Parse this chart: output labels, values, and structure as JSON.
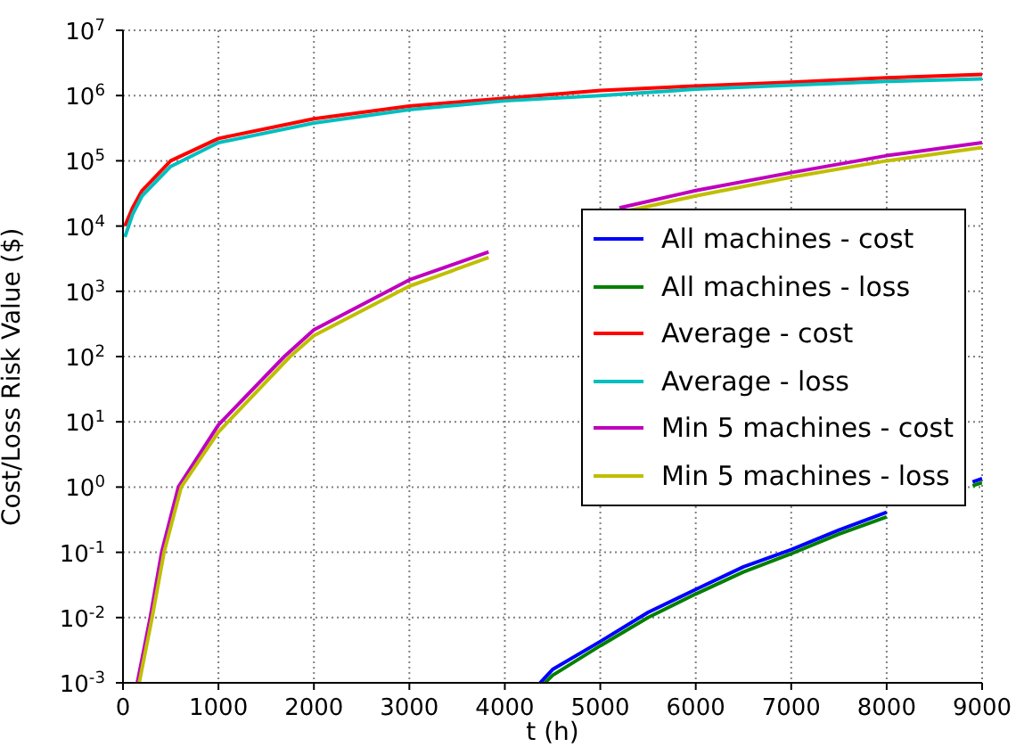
{
  "chart_data": {
    "type": "line",
    "xlabel": "t (h)",
    "ylabel": "Cost/Loss Risk Value ($)",
    "log": "y",
    "grid": true,
    "legend": "right",
    "line_style": "solid",
    "marker": "none",
    "xlim": [
      0,
      9000
    ],
    "xticks": [
      0,
      1000,
      2000,
      3000,
      4000,
      5000,
      6000,
      7000,
      8000,
      9000
    ],
    "ylim": [
      0.001,
      10000000
    ],
    "yticks": [
      {
        "value": 0.001,
        "label": "10$^{-3}$"
      },
      {
        "value": 0.01,
        "label": "10$^{-2}$"
      },
      {
        "value": 0.1,
        "label": "10$^{-1}$"
      },
      {
        "value": 1,
        "label": "10$^{0}$"
      },
      {
        "value": 10,
        "label": "10$^{1}$"
      },
      {
        "value": 100,
        "label": "10$^{2}$"
      },
      {
        "value": 1000,
        "label": "10$^{3}$"
      },
      {
        "value": 10000,
        "label": "10$^{4}$"
      },
      {
        "value": 100000,
        "label": "10$^{5}$"
      },
      {
        "value": 1000000,
        "label": "10$^{6}$"
      },
      {
        "value": 10000000,
        "label": "10$^{7}$"
      }
    ],
    "series": [
      {
        "name": "All machines - cost",
        "color": "#0000ff",
        "x": [
          4370,
          4500,
          5000,
          5500,
          6000,
          6500,
          7000,
          7500,
          8000,
          8300,
          8600,
          8900,
          9000
        ],
        "values": [
          0.001,
          0.0016,
          0.0043,
          0.012,
          0.027,
          0.06,
          0.11,
          0.22,
          0.41,
          null,
          null,
          1.2,
          1.35
        ]
      },
      {
        "name": "All machines - loss",
        "color": "#008000",
        "x": [
          4420,
          4500,
          5000,
          5500,
          6000,
          6500,
          7000,
          7500,
          8000,
          8300,
          8600,
          8900,
          9000
        ],
        "values": [
          0.001,
          0.0013,
          0.0037,
          0.01,
          0.023,
          0.05,
          0.095,
          0.19,
          0.35,
          null,
          null,
          1.05,
          1.17
        ]
      },
      {
        "name": "Average - cost",
        "color": "#ff0000",
        "x": [
          20,
          100,
          200,
          500,
          1000,
          2000,
          3000,
          4000,
          5000,
          6000,
          7000,
          8000,
          9000
        ],
        "values": [
          10000,
          19000,
          35000,
          100000,
          220000,
          440000,
          690000,
          910000,
          1200000,
          1400000,
          1600000,
          1870000,
          2100000
        ]
      },
      {
        "name": "Average - loss",
        "color": "#00bfbf",
        "x": [
          20,
          100,
          200,
          500,
          1000,
          2000,
          3000,
          4000,
          5000,
          6000,
          7000,
          8000,
          9000
        ],
        "values": [
          6800,
          15000,
          29000,
          82000,
          190000,
          380000,
          610000,
          830000,
          1000000,
          1250000,
          1450000,
          1650000,
          1800000
        ]
      },
      {
        "name": "Min 5 machines - cost",
        "color": "#bf00bf",
        "x": [
          150,
          285,
          405,
          580,
          1000,
          1690,
          2000,
          3000,
          3500,
          3830,
          4500,
          5200,
          6000,
          7000,
          8000,
          9000
        ],
        "values": [
          0.001,
          0.01,
          0.1,
          1,
          9,
          100,
          257,
          1500,
          2700,
          4000,
          null,
          19000,
          35000,
          66000,
          120000,
          190000
        ]
      },
      {
        "name": "Min 5 machines - loss",
        "color": "#bfbf00",
        "x": [
          170,
          305,
          430,
          610,
          1000,
          1750,
          2000,
          3000,
          3500,
          3830,
          4500,
          5280,
          6000,
          7000,
          8000,
          9000
        ],
        "values": [
          0.001,
          0.01,
          0.1,
          1,
          7,
          100,
          210,
          1200,
          2200,
          3300,
          null,
          17000,
          29000,
          56000,
          100000,
          160000
        ]
      }
    ]
  }
}
